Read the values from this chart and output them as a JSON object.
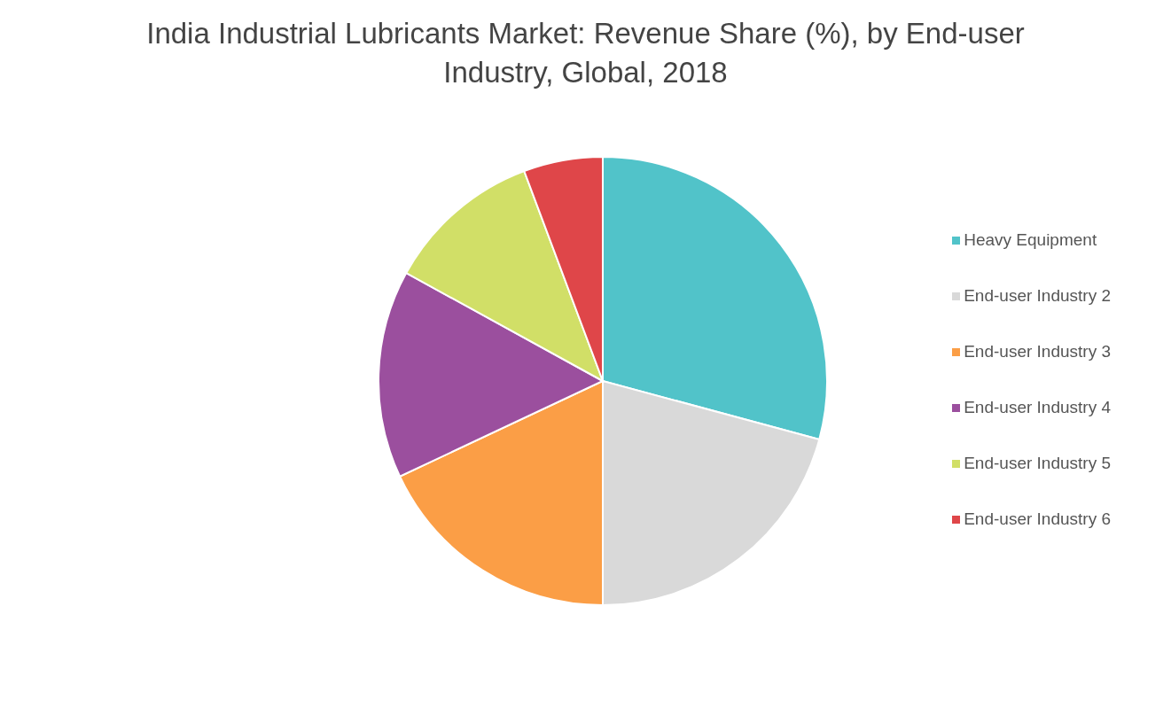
{
  "chart_data": {
    "type": "pie",
    "title": "India Industrial Lubricants Market: Revenue Share (%), by End-user Industry, Global, 2018",
    "categories": [
      "Heavy Equipment",
      "End-user Industry 2",
      "End-user Industry 3",
      "End-user Industry 4",
      "End-user Industry 5",
      "End-user Industry 6"
    ],
    "values": [
      29.2,
      20.8,
      18,
      15,
      11.3,
      5.7
    ],
    "colors": [
      "#51c3c9",
      "#d9d9d9",
      "#fb9e46",
      "#9b4f9e",
      "#d1df67",
      "#df4649"
    ],
    "legend": "right"
  }
}
